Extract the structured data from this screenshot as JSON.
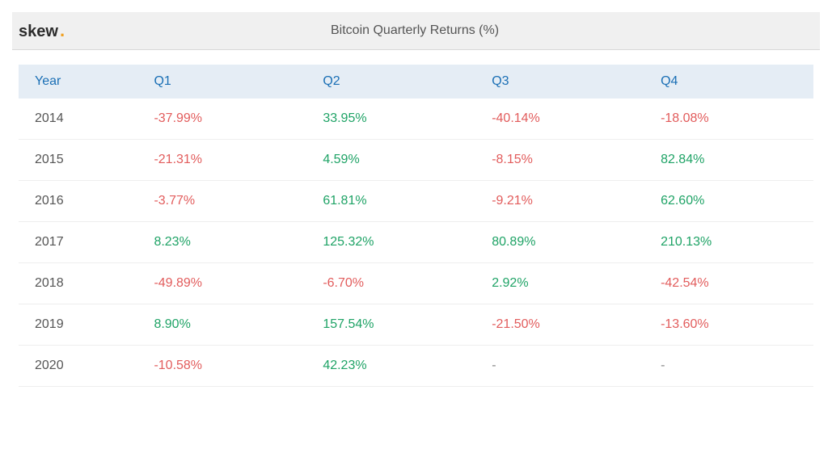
{
  "brand": {
    "name": "skew",
    "dot": "."
  },
  "title": "Bitcoin Quarterly Returns (%)",
  "table": {
    "type": "table",
    "header_color": "#1a6fb5",
    "header_bg": "#e5edf5",
    "positive_color": "#1fa366",
    "negative_color": "#e25c5c",
    "na_color": "#888888",
    "year_color": "#555555",
    "row_border_color": "#eeeeee",
    "columns": [
      "Year",
      "Q1",
      "Q2",
      "Q3",
      "Q4"
    ],
    "rows": [
      {
        "year": "2014",
        "q1": {
          "v": "-37.99%",
          "s": "neg"
        },
        "q2": {
          "v": "33.95%",
          "s": "pos"
        },
        "q3": {
          "v": "-40.14%",
          "s": "neg"
        },
        "q4": {
          "v": "-18.08%",
          "s": "neg"
        }
      },
      {
        "year": "2015",
        "q1": {
          "v": "-21.31%",
          "s": "neg"
        },
        "q2": {
          "v": "4.59%",
          "s": "pos"
        },
        "q3": {
          "v": "-8.15%",
          "s": "neg"
        },
        "q4": {
          "v": "82.84%",
          "s": "pos"
        }
      },
      {
        "year": "2016",
        "q1": {
          "v": "-3.77%",
          "s": "neg"
        },
        "q2": {
          "v": "61.81%",
          "s": "pos"
        },
        "q3": {
          "v": "-9.21%",
          "s": "neg"
        },
        "q4": {
          "v": "62.60%",
          "s": "pos"
        }
      },
      {
        "year": "2017",
        "q1": {
          "v": "8.23%",
          "s": "pos"
        },
        "q2": {
          "v": "125.32%",
          "s": "pos"
        },
        "q3": {
          "v": "80.89%",
          "s": "pos"
        },
        "q4": {
          "v": "210.13%",
          "s": "pos"
        }
      },
      {
        "year": "2018",
        "q1": {
          "v": "-49.89%",
          "s": "neg"
        },
        "q2": {
          "v": "-6.70%",
          "s": "neg"
        },
        "q3": {
          "v": "2.92%",
          "s": "pos"
        },
        "q4": {
          "v": "-42.54%",
          "s": "neg"
        }
      },
      {
        "year": "2019",
        "q1": {
          "v": "8.90%",
          "s": "pos"
        },
        "q2": {
          "v": "157.54%",
          "s": "pos"
        },
        "q3": {
          "v": "-21.50%",
          "s": "neg"
        },
        "q4": {
          "v": "-13.60%",
          "s": "neg"
        }
      },
      {
        "year": "2020",
        "q1": {
          "v": "-10.58%",
          "s": "neg"
        },
        "q2": {
          "v": "42.23%",
          "s": "pos"
        },
        "q3": {
          "v": "-",
          "s": "na"
        },
        "q4": {
          "v": "-",
          "s": "na"
        }
      }
    ]
  }
}
